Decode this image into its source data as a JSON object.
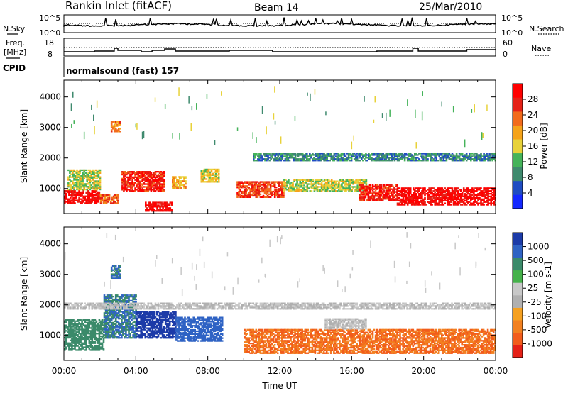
{
  "header": {
    "title": "Rankin Inlet (fitACF)",
    "beam": "Beam 14",
    "date": "25/Mar/2010"
  },
  "status_panels": {
    "noise": {
      "left_label": "N.Sky",
      "right_label": "N.Search",
      "left_ticks": [
        "10^5",
        "10^0"
      ],
      "right_ticks": [
        "10^5",
        "10^0"
      ]
    },
    "frequency": {
      "left_label_lines": [
        "Freq.",
        "[MHz]"
      ],
      "right_label": "Nave",
      "left_ticks": [
        "18",
        "8"
      ],
      "right_ticks": [
        "60",
        "0"
      ]
    },
    "cpid": {
      "label": "CPID",
      "mode": "normalsound (fast) 157"
    }
  },
  "colors": {
    "power_scale": [
      "#1428ff",
      "#1f4cc2",
      "#3f8a6e",
      "#45b35a",
      "#e8d23a",
      "#f5a31a",
      "#f26b1c",
      "#e52117",
      "#ff0000"
    ],
    "velocity_scale": [
      "#1c3ba8",
      "#2f63c4",
      "#3b8a6a",
      "#45b24a",
      "#c8c8c8",
      "#b0b0b0",
      "#f5a020",
      "#f28020",
      "#f25c1c",
      "#e52117"
    ]
  },
  "chart_data": [
    {
      "type": "heatmap",
      "name": "power",
      "xlabel": "",
      "ylabel": "Slant Range [km]",
      "xlim": [
        "00:00",
        "24:00"
      ],
      "ylim": [
        180,
        4550
      ],
      "x_ticks": [
        "00:00",
        "04:00",
        "08:00",
        "12:00",
        "16:00",
        "20:00",
        "00:00"
      ],
      "y_ticks": [
        1000,
        2000,
        3000,
        4000
      ],
      "colorbar": {
        "label": "Power [dB]",
        "ticks": [
          4,
          8,
          12,
          16,
          20,
          24,
          28
        ],
        "range": [
          0,
          30
        ]
      },
      "echo_regions": [
        {
          "t": [
            0.0,
            2.0
          ],
          "range": [
            500,
            950
          ],
          "value": 28
        },
        {
          "t": [
            2.0,
            3.0
          ],
          "range": [
            500,
            800
          ],
          "value": 22
        },
        {
          "t": [
            0.2,
            2.0
          ],
          "range": [
            950,
            1600
          ],
          "value": 14
        },
        {
          "t": [
            2.6,
            3.1
          ],
          "range": [
            2850,
            3200
          ],
          "value": 20
        },
        {
          "t": [
            3.2,
            5.6
          ],
          "range": [
            900,
            1550
          ],
          "value": 26
        },
        {
          "t": [
            4.5,
            6.0
          ],
          "range": [
            250,
            550
          ],
          "value": 28
        },
        {
          "t": [
            6.0,
            6.8
          ],
          "range": [
            1000,
            1400
          ],
          "value": 18
        },
        {
          "t": [
            7.6,
            8.6
          ],
          "range": [
            1200,
            1650
          ],
          "value": 16
        },
        {
          "t": [
            9.6,
            12.2
          ],
          "range": [
            700,
            1200
          ],
          "value": 24
        },
        {
          "t": [
            12.2,
            16.8
          ],
          "range": [
            900,
            1300
          ],
          "value": 14
        },
        {
          "t": [
            16.4,
            18.5
          ],
          "range": [
            600,
            1100
          ],
          "value": 26
        },
        {
          "t": [
            18.5,
            24.0
          ],
          "range": [
            450,
            1000
          ],
          "value": 28
        },
        {
          "t": [
            10.5,
            24.0
          ],
          "range": [
            1900,
            2150
          ],
          "value": 8
        }
      ]
    },
    {
      "type": "heatmap",
      "name": "velocity",
      "xlabel": "Time UT",
      "ylabel": "Slant Range [km]",
      "xlim": [
        "00:00",
        "24:00"
      ],
      "ylim": [
        180,
        4550
      ],
      "x_ticks": [
        "00:00",
        "04:00",
        "08:00",
        "12:00",
        "16:00",
        "20:00",
        "00:00"
      ],
      "y_ticks": [
        1000,
        2000,
        3000,
        4000
      ],
      "colorbar": {
        "label": "Velocity [m s-1]",
        "ticks": [
          "1000",
          "500",
          "100",
          "25",
          "-25",
          "-100",
          "-500",
          "-1000"
        ]
      },
      "echo_regions": [
        {
          "t": [
            0.0,
            2.2
          ],
          "range": [
            500,
            1500
          ],
          "value": 100
        },
        {
          "t": [
            2.2,
            4.0
          ],
          "range": [
            900,
            2300
          ],
          "value": 300
        },
        {
          "t": [
            2.6,
            3.1
          ],
          "range": [
            2850,
            3300
          ],
          "value": 300
        },
        {
          "t": [
            4.0,
            6.2
          ],
          "range": [
            900,
            1800
          ],
          "value": 800
        },
        {
          "t": [
            6.2,
            8.8
          ],
          "range": [
            800,
            1600
          ],
          "value": 600
        },
        {
          "t": [
            10.0,
            24.0
          ],
          "range": [
            400,
            1200
          ],
          "value": -300
        },
        {
          "t": [
            14.5,
            16.8
          ],
          "range": [
            1200,
            1550
          ],
          "value": 0
        },
        {
          "t": [
            0.0,
            24.0
          ],
          "range": [
            1850,
            2050
          ],
          "value": 0
        }
      ]
    }
  ]
}
